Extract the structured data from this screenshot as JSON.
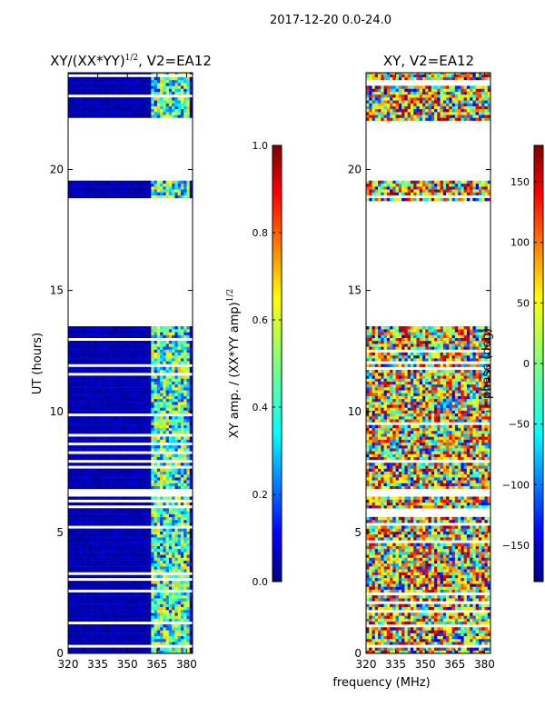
{
  "figure": {
    "suptitle": "2017-12-20 0.0-24.0",
    "shared_xlabel": "frequency (MHz)"
  },
  "chart_data": [
    {
      "type": "heatmap",
      "title": "XY/(XX*YY)",
      "title_exponent": "1/2",
      "title_suffix": ", V2=EA12",
      "xlabel": "",
      "ylabel": "UT (hours)",
      "xlim": [
        320,
        383
      ],
      "ylim": [
        0,
        24
      ],
      "xticks": [
        320,
        335,
        350,
        365,
        380
      ],
      "yticks": [
        0,
        5,
        10,
        15,
        20
      ],
      "colorbar": {
        "label": "XY amp. / (XX*YY amp)",
        "label_exponent": "1/2",
        "range": [
          0.0,
          1.0
        ],
        "ticks": [
          0.0,
          0.2,
          0.4,
          0.6,
          0.8,
          1.0
        ],
        "tick_labels": [
          "0.0",
          "0.2",
          "0.4",
          "0.6",
          "0.8",
          "1.0"
        ],
        "colormap": "jet"
      },
      "data_segments_ut": [
        [
          0,
          6.4
        ],
        [
          6.8,
          13.4
        ],
        [
          18.7,
          19.5
        ],
        [
          21.9,
          24
        ]
      ],
      "description": "Low normalized amplitude (~0.05) at most frequencies; higher values (0.3-0.7) in the 362-380 MHz band"
    },
    {
      "type": "heatmap",
      "title": "XY, V2=EA12",
      "xlabel": "",
      "ylabel": "",
      "xlim": [
        320,
        383
      ],
      "ylim": [
        0,
        24
      ],
      "xticks": [
        320,
        335,
        350,
        365,
        380
      ],
      "yticks": [
        0,
        5,
        10,
        15,
        20
      ],
      "colorbar": {
        "label": "phase (deg)",
        "range": [
          -180,
          180
        ],
        "ticks": [
          -150,
          -100,
          -50,
          0,
          50,
          100,
          150
        ],
        "tick_labels": [
          "−150",
          "−100",
          "−50",
          "0",
          "50",
          "100",
          "150"
        ],
        "colormap": "jet"
      },
      "data_segments_ut": [
        [
          0,
          6.4
        ],
        [
          6.8,
          13.4
        ],
        [
          18.7,
          19.5
        ],
        [
          21.9,
          24
        ]
      ],
      "description": "Noisy phase, mostly between -180 and 180 degrees"
    }
  ],
  "colors": {
    "jet": [
      "#00007f",
      "#0000ff",
      "#007fff",
      "#00ffff",
      "#7fff7f",
      "#ffff00",
      "#ff7f00",
      "#ff0000",
      "#7f0000"
    ]
  }
}
